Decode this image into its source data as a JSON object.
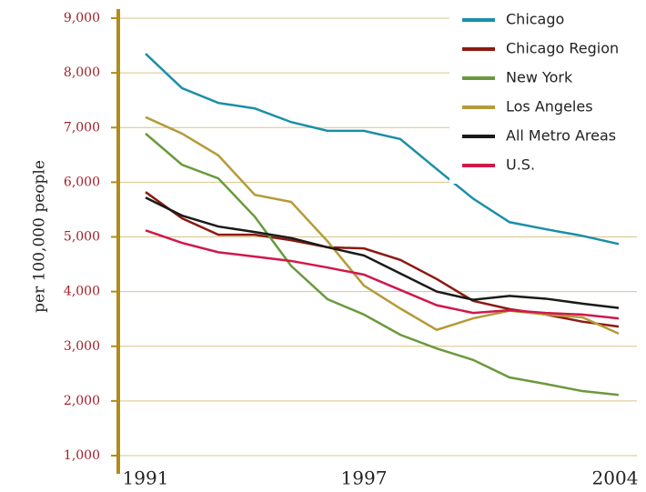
{
  "chart_data": {
    "type": "line",
    "y_label": "per 100,000 people",
    "x": [
      1991,
      1992,
      1993,
      1994,
      1995,
      1996,
      1997,
      1998,
      1999,
      2000,
      2001,
      2002,
      2003,
      2004
    ],
    "xlim": [
      1991,
      2004
    ],
    "xticks": [
      1991,
      1997,
      2004
    ],
    "ylim": [
      1000,
      9000
    ],
    "yticks": [
      {
        "value": 1000,
        "label": "1,000"
      },
      {
        "value": 2000,
        "label": "2,000"
      },
      {
        "value": 3000,
        "label": "3,000"
      },
      {
        "value": 4000,
        "label": "4,000"
      },
      {
        "value": 5000,
        "label": "5,000"
      },
      {
        "value": 6000,
        "label": "6,000"
      },
      {
        "value": 7000,
        "label": "7,000"
      },
      {
        "value": 8000,
        "label": "8,000"
      },
      {
        "value": 9000,
        "label": "9,000"
      }
    ],
    "grid": true,
    "legend": "top-right",
    "series": [
      {
        "name": "Chicago",
        "color": "#1a8fa8",
        "values": [
          8350,
          7720,
          7450,
          7350,
          7100,
          6940,
          6940,
          6790,
          6240,
          5700,
          5270,
          5140,
          5020,
          4870
        ]
      },
      {
        "name": "Chicago Region",
        "color": "#8b1a10",
        "values": [
          5820,
          5340,
          5040,
          5040,
          4940,
          4810,
          4790,
          4580,
          4230,
          3830,
          3680,
          3580,
          3450,
          3360
        ]
      },
      {
        "name": "New York",
        "color": "#6a9a3c",
        "values": [
          6890,
          6320,
          6070,
          5370,
          4470,
          3860,
          3580,
          3210,
          2960,
          2750,
          2430,
          2310,
          2180,
          2110
        ]
      },
      {
        "name": "Los Angeles",
        "color": "#b59a3a",
        "values": [
          7190,
          6890,
          6490,
          5770,
          5640,
          4920,
          4110,
          3690,
          3300,
          3510,
          3650,
          3580,
          3530,
          3230
        ]
      },
      {
        "name": "All Metro Areas",
        "color": "#1a1a1a",
        "values": [
          5720,
          5390,
          5190,
          5090,
          4980,
          4810,
          4660,
          4330,
          4000,
          3850,
          3920,
          3870,
          3780,
          3700
        ]
      },
      {
        "name": "U.S.",
        "color": "#d0184a",
        "values": [
          5120,
          4890,
          4720,
          4640,
          4560,
          4440,
          4310,
          4030,
          3750,
          3610,
          3660,
          3610,
          3580,
          3510
        ]
      }
    ]
  }
}
